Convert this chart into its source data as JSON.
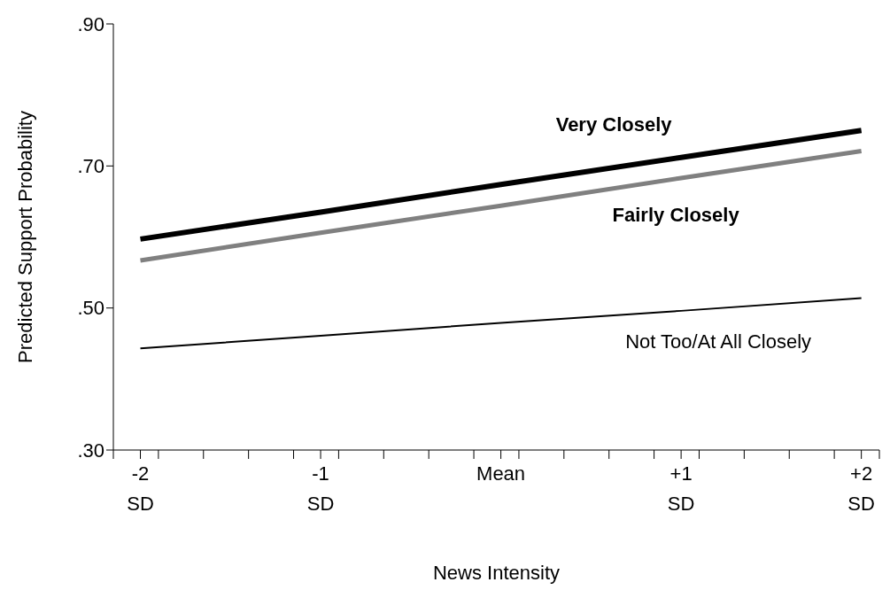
{
  "chart_data": {
    "type": "line",
    "xlabel": "News Intensity",
    "ylabel": "Predicted Support Probability",
    "x": [
      -2,
      -1,
      0,
      1,
      2
    ],
    "series": [
      {
        "name": "Very Closely",
        "color": "#000000",
        "values": [
          0.597,
          0.635,
          0.674,
          0.712,
          0.75
        ]
      },
      {
        "name": "Fairly Closely",
        "color": "#808080",
        "values": [
          0.567,
          0.606,
          0.644,
          0.683,
          0.721
        ]
      },
      {
        "name": "Not Too/At All Closely",
        "color": "#000000",
        "values": [
          0.443,
          0.461,
          0.479,
          0.496,
          0.514
        ]
      }
    ],
    "xlim": [
      -2.15,
      2.1
    ],
    "xticks": [
      {
        "value": -2.15,
        "label": null
      },
      {
        "value": -1.9,
        "label": null
      },
      {
        "value": -1.65,
        "label": null
      },
      {
        "value": -1.4,
        "label": null
      },
      {
        "value": -1.15,
        "label": null
      },
      {
        "value": -0.9,
        "label": null
      },
      {
        "value": -0.65,
        "label": null
      },
      {
        "value": -0.4,
        "label": null
      },
      {
        "value": -0.15,
        "label": null
      },
      {
        "value": 0.1,
        "label": null
      },
      {
        "value": 0.35,
        "label": null
      },
      {
        "value": 0.6,
        "label": null
      },
      {
        "value": 0.85,
        "label": null
      },
      {
        "value": 1.1,
        "label": null
      },
      {
        "value": 1.35,
        "label": null
      },
      {
        "value": 1.6,
        "label": null
      },
      {
        "value": 1.85,
        "label": null
      },
      {
        "value": 2.1,
        "label": null
      },
      {
        "value": -2,
        "label": "-2\nSD"
      },
      {
        "value": -1,
        "label": "-1\nSD"
      },
      {
        "value": 0,
        "label": "Mean"
      },
      {
        "value": 1,
        "label": "+1\nSD"
      },
      {
        "value": 2,
        "label": "+2\nSD"
      }
    ],
    "ylim": [
      0.3,
      0.9
    ],
    "yticks": [
      {
        "value": 0.3,
        "label": ".30"
      },
      {
        "value": 0.5,
        "label": ".50"
      },
      {
        "value": 0.7,
        "label": ".70"
      },
      {
        "value": 0.9,
        "label": ".90"
      }
    ],
    "grid": false,
    "marker": "none",
    "line_style": "solid"
  }
}
